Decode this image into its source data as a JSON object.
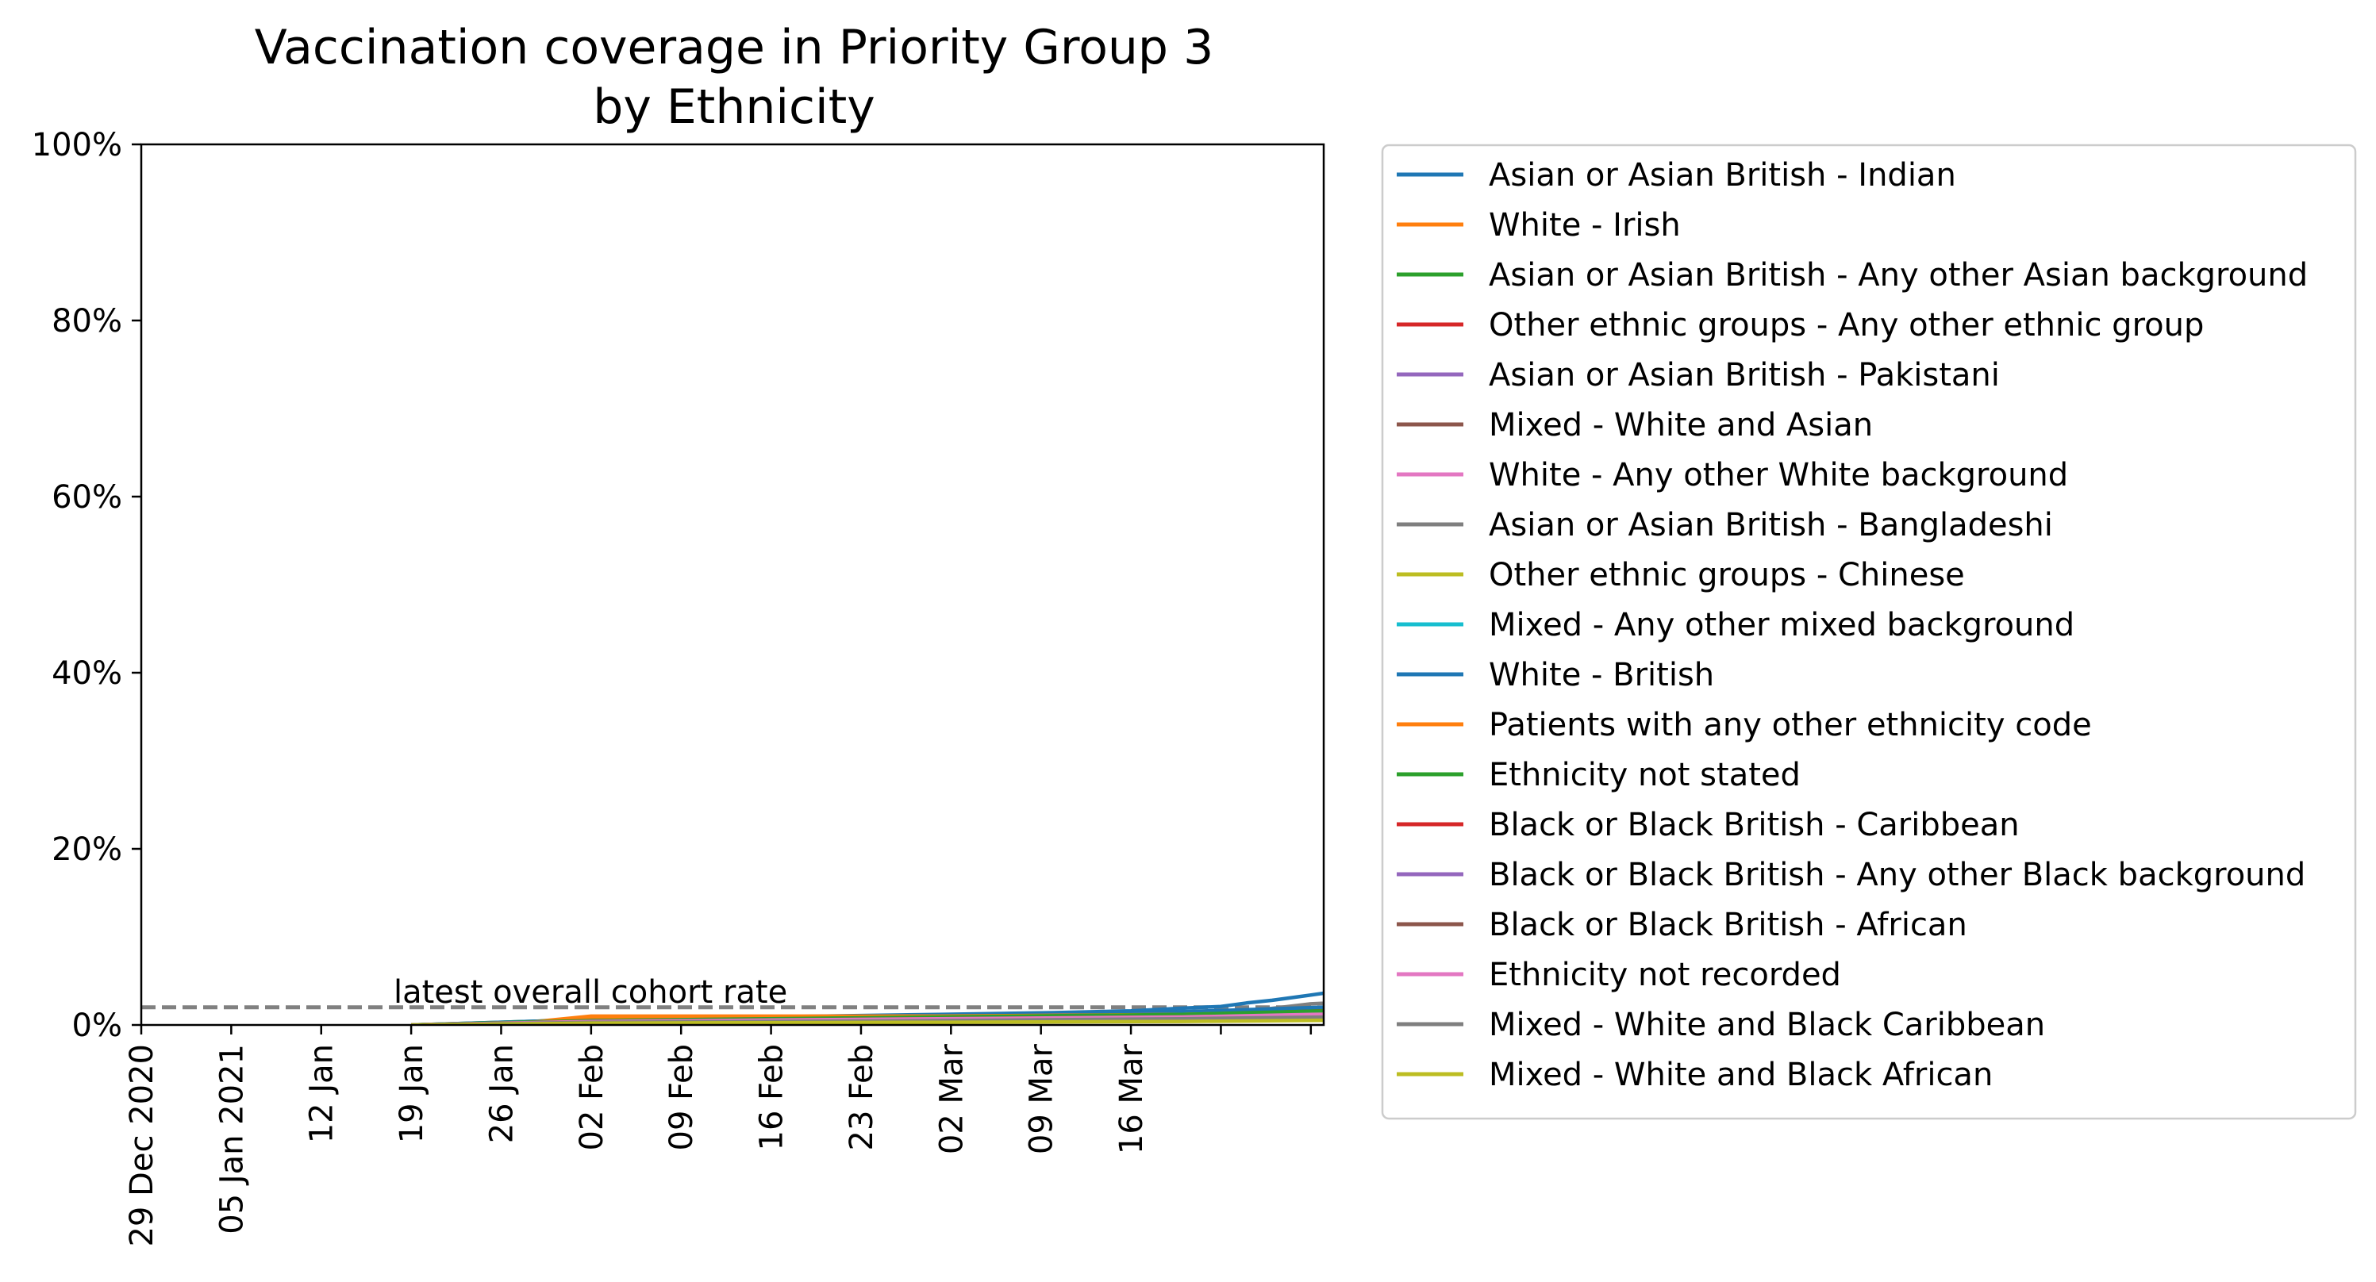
{
  "chart_data": {
    "type": "line",
    "title_line1": "Vaccination coverage in Priority Group 3",
    "title_line2": "by Ethnicity",
    "xlabel": "",
    "ylabel": "",
    "ylim": [
      0,
      100
    ],
    "yticks": [
      "0%",
      "20%",
      "40%",
      "60%",
      "80%",
      "100%"
    ],
    "xlim": [
      "2020-12-29",
      "2021-03-31"
    ],
    "xticks": [
      {
        "date": "2020-12-29",
        "label": "29 Dec 2020"
      },
      {
        "date": "2021-01-05",
        "label": "05 Jan 2021"
      },
      {
        "date": "2021-01-12",
        "label": "12 Jan"
      },
      {
        "date": "2021-01-19",
        "label": "19 Jan"
      },
      {
        "date": "2021-01-26",
        "label": "26 Jan"
      },
      {
        "date": "2021-02-02",
        "label": "02 Feb"
      },
      {
        "date": "2021-02-09",
        "label": "09 Feb"
      },
      {
        "date": "2021-02-16",
        "label": "16 Feb"
      },
      {
        "date": "2021-02-23",
        "label": "23 Feb"
      },
      {
        "date": "2021-03-02",
        "label": "02 Mar"
      },
      {
        "date": "2021-03-09",
        "label": "09 Mar"
      },
      {
        "date": "2021-03-16",
        "label": "16 Mar"
      },
      {
        "date": "2021-03-23",
        "label": ""
      },
      {
        "date": "2021-03-30",
        "label": ""
      }
    ],
    "reference_line": {
      "value": 2,
      "label": "latest overall cohort rate",
      "color": "#808080"
    },
    "legend_position": "outside-right",
    "grid": false,
    "series": [
      {
        "name": "Asian or Asian British - Indian",
        "color": "#1f77b4",
        "points": [
          [
            "2021-01-19",
            0
          ],
          [
            "2021-02-01",
            0.5
          ],
          [
            "2021-02-15",
            0.9
          ],
          [
            "2021-03-01",
            1.2
          ],
          [
            "2021-03-10",
            1.4
          ],
          [
            "2021-03-16",
            1.6
          ],
          [
            "2021-03-20",
            1.9
          ],
          [
            "2021-03-23",
            2.1
          ],
          [
            "2021-03-25",
            2.5
          ],
          [
            "2021-03-27",
            2.8
          ],
          [
            "2021-03-29",
            3.2
          ],
          [
            "2021-03-31",
            3.6
          ],
          [
            "2021-04-04",
            3.9
          ],
          [
            "2021-04-06",
            4.3
          ]
        ]
      },
      {
        "name": "White - Irish",
        "color": "#ff7f0e",
        "points": [
          [
            "2021-01-26",
            0
          ],
          [
            "2021-02-02",
            1.0
          ],
          [
            "2021-03-01",
            1.0
          ],
          [
            "2021-03-20",
            1.2
          ],
          [
            "2021-04-06",
            1.6
          ]
        ]
      },
      {
        "name": "Asian or Asian British - Any other Asian background",
        "color": "#2ca02c",
        "points": [
          [
            "2021-01-19",
            0
          ],
          [
            "2021-02-02",
            0.6
          ],
          [
            "2021-03-01",
            0.9
          ],
          [
            "2021-03-20",
            1.3
          ],
          [
            "2021-04-06",
            2.2
          ]
        ]
      },
      {
        "name": "Other ethnic groups - Any other ethnic group",
        "color": "#d62728",
        "points": [
          [
            "2021-01-19",
            0
          ],
          [
            "2021-02-02",
            0.5
          ],
          [
            "2021-03-01",
            0.8
          ],
          [
            "2021-03-20",
            1.1
          ],
          [
            "2021-04-06",
            1.9
          ]
        ]
      },
      {
        "name": "Asian or Asian British - Pakistani",
        "color": "#9467bd",
        "points": [
          [
            "2021-01-19",
            0
          ],
          [
            "2021-02-02",
            0.4
          ],
          [
            "2021-03-01",
            0.7
          ],
          [
            "2021-03-20",
            0.9
          ],
          [
            "2021-04-06",
            1.5
          ]
        ]
      },
      {
        "name": "Mixed - White and Asian",
        "color": "#8c564b",
        "points": [
          [
            "2021-01-19",
            0
          ],
          [
            "2021-02-02",
            0.4
          ],
          [
            "2021-03-01",
            0.8
          ],
          [
            "2021-03-20",
            1.0
          ],
          [
            "2021-04-06",
            1.6
          ]
        ]
      },
      {
        "name": "White - Any other White background",
        "color": "#e377c2",
        "points": [
          [
            "2021-01-19",
            0
          ],
          [
            "2021-02-02",
            0.5
          ],
          [
            "2021-03-01",
            0.8
          ],
          [
            "2021-03-20",
            1.0
          ],
          [
            "2021-04-06",
            1.4
          ]
        ]
      },
      {
        "name": "Asian or Asian British - Bangladeshi",
        "color": "#7f7f7f",
        "points": [
          [
            "2021-01-19",
            0
          ],
          [
            "2021-02-02",
            0.3
          ],
          [
            "2021-03-01",
            0.6
          ],
          [
            "2021-03-23",
            1.2
          ],
          [
            "2021-03-30",
            2.4
          ],
          [
            "2021-04-06",
            2.9
          ]
        ]
      },
      {
        "name": "Other ethnic groups - Chinese",
        "color": "#bcbd22",
        "points": [
          [
            "2021-01-19",
            0
          ],
          [
            "2021-02-02",
            0.3
          ],
          [
            "2021-03-01",
            0.4
          ],
          [
            "2021-03-20",
            0.5
          ],
          [
            "2021-04-06",
            0.8
          ]
        ]
      },
      {
        "name": "Mixed - Any other mixed background",
        "color": "#17becf",
        "points": [
          [
            "2021-01-19",
            0
          ],
          [
            "2021-02-02",
            0.4
          ],
          [
            "2021-03-01",
            0.7
          ],
          [
            "2021-03-20",
            0.9
          ],
          [
            "2021-04-06",
            1.3
          ]
        ]
      },
      {
        "name": "White - British",
        "color": "#1f77b4",
        "points": [
          [
            "2021-01-19",
            0
          ],
          [
            "2021-02-02",
            0.6
          ],
          [
            "2021-03-01",
            1.0
          ],
          [
            "2021-03-20",
            1.5
          ],
          [
            "2021-04-06",
            2.3
          ]
        ]
      },
      {
        "name": "Patients with any other ethnicity code",
        "color": "#ff7f0e",
        "points": [
          [
            "2021-01-26",
            0
          ],
          [
            "2021-02-02",
            0.9
          ],
          [
            "2021-03-01",
            1.0
          ],
          [
            "2021-03-20",
            1.2
          ],
          [
            "2021-04-06",
            1.7
          ]
        ]
      },
      {
        "name": "Ethnicity not stated",
        "color": "#2ca02c",
        "points": [
          [
            "2021-01-19",
            0
          ],
          [
            "2021-02-02",
            0.5
          ],
          [
            "2021-03-01",
            0.9
          ],
          [
            "2021-03-20",
            1.2
          ],
          [
            "2021-04-06",
            1.8
          ]
        ]
      },
      {
        "name": "Black or Black British - Caribbean",
        "color": "#d62728",
        "points": [
          [
            "2021-01-19",
            0
          ],
          [
            "2021-02-02",
            0.4
          ],
          [
            "2021-03-01",
            0.7
          ],
          [
            "2021-03-20",
            0.9
          ],
          [
            "2021-04-06",
            1.3
          ]
        ]
      },
      {
        "name": "Black or Black British - Any other Black background",
        "color": "#9467bd",
        "points": [
          [
            "2021-01-19",
            0
          ],
          [
            "2021-02-02",
            0.3
          ],
          [
            "2021-03-01",
            0.6
          ],
          [
            "2021-03-20",
            0.8
          ],
          [
            "2021-04-06",
            1.2
          ]
        ]
      },
      {
        "name": "Black or Black British - African",
        "color": "#8c564b",
        "points": [
          [
            "2021-01-19",
            0
          ],
          [
            "2021-02-02",
            0.3
          ],
          [
            "2021-03-01",
            0.6
          ],
          [
            "2021-03-20",
            0.8
          ],
          [
            "2021-04-06",
            1.1
          ]
        ]
      },
      {
        "name": "Ethnicity not recorded",
        "color": "#e377c2",
        "points": [
          [
            "2021-01-19",
            0
          ],
          [
            "2021-02-02",
            0.4
          ],
          [
            "2021-03-01",
            0.7
          ],
          [
            "2021-03-20",
            0.9
          ],
          [
            "2021-04-06",
            1.4
          ]
        ]
      },
      {
        "name": "Mixed - White and Black Caribbean",
        "color": "#7f7f7f",
        "points": [
          [
            "2021-01-19",
            0
          ],
          [
            "2021-02-02",
            0.3
          ],
          [
            "2021-03-01",
            0.5
          ],
          [
            "2021-03-20",
            0.7
          ],
          [
            "2021-04-06",
            1.0
          ]
        ]
      },
      {
        "name": "Mixed - White and Black African",
        "color": "#bcbd22",
        "points": [
          [
            "2021-01-19",
            0
          ],
          [
            "2021-02-02",
            0.2
          ],
          [
            "2021-03-01",
            0.3
          ],
          [
            "2021-03-20",
            0.4
          ],
          [
            "2021-04-06",
            0.6
          ]
        ]
      }
    ]
  }
}
